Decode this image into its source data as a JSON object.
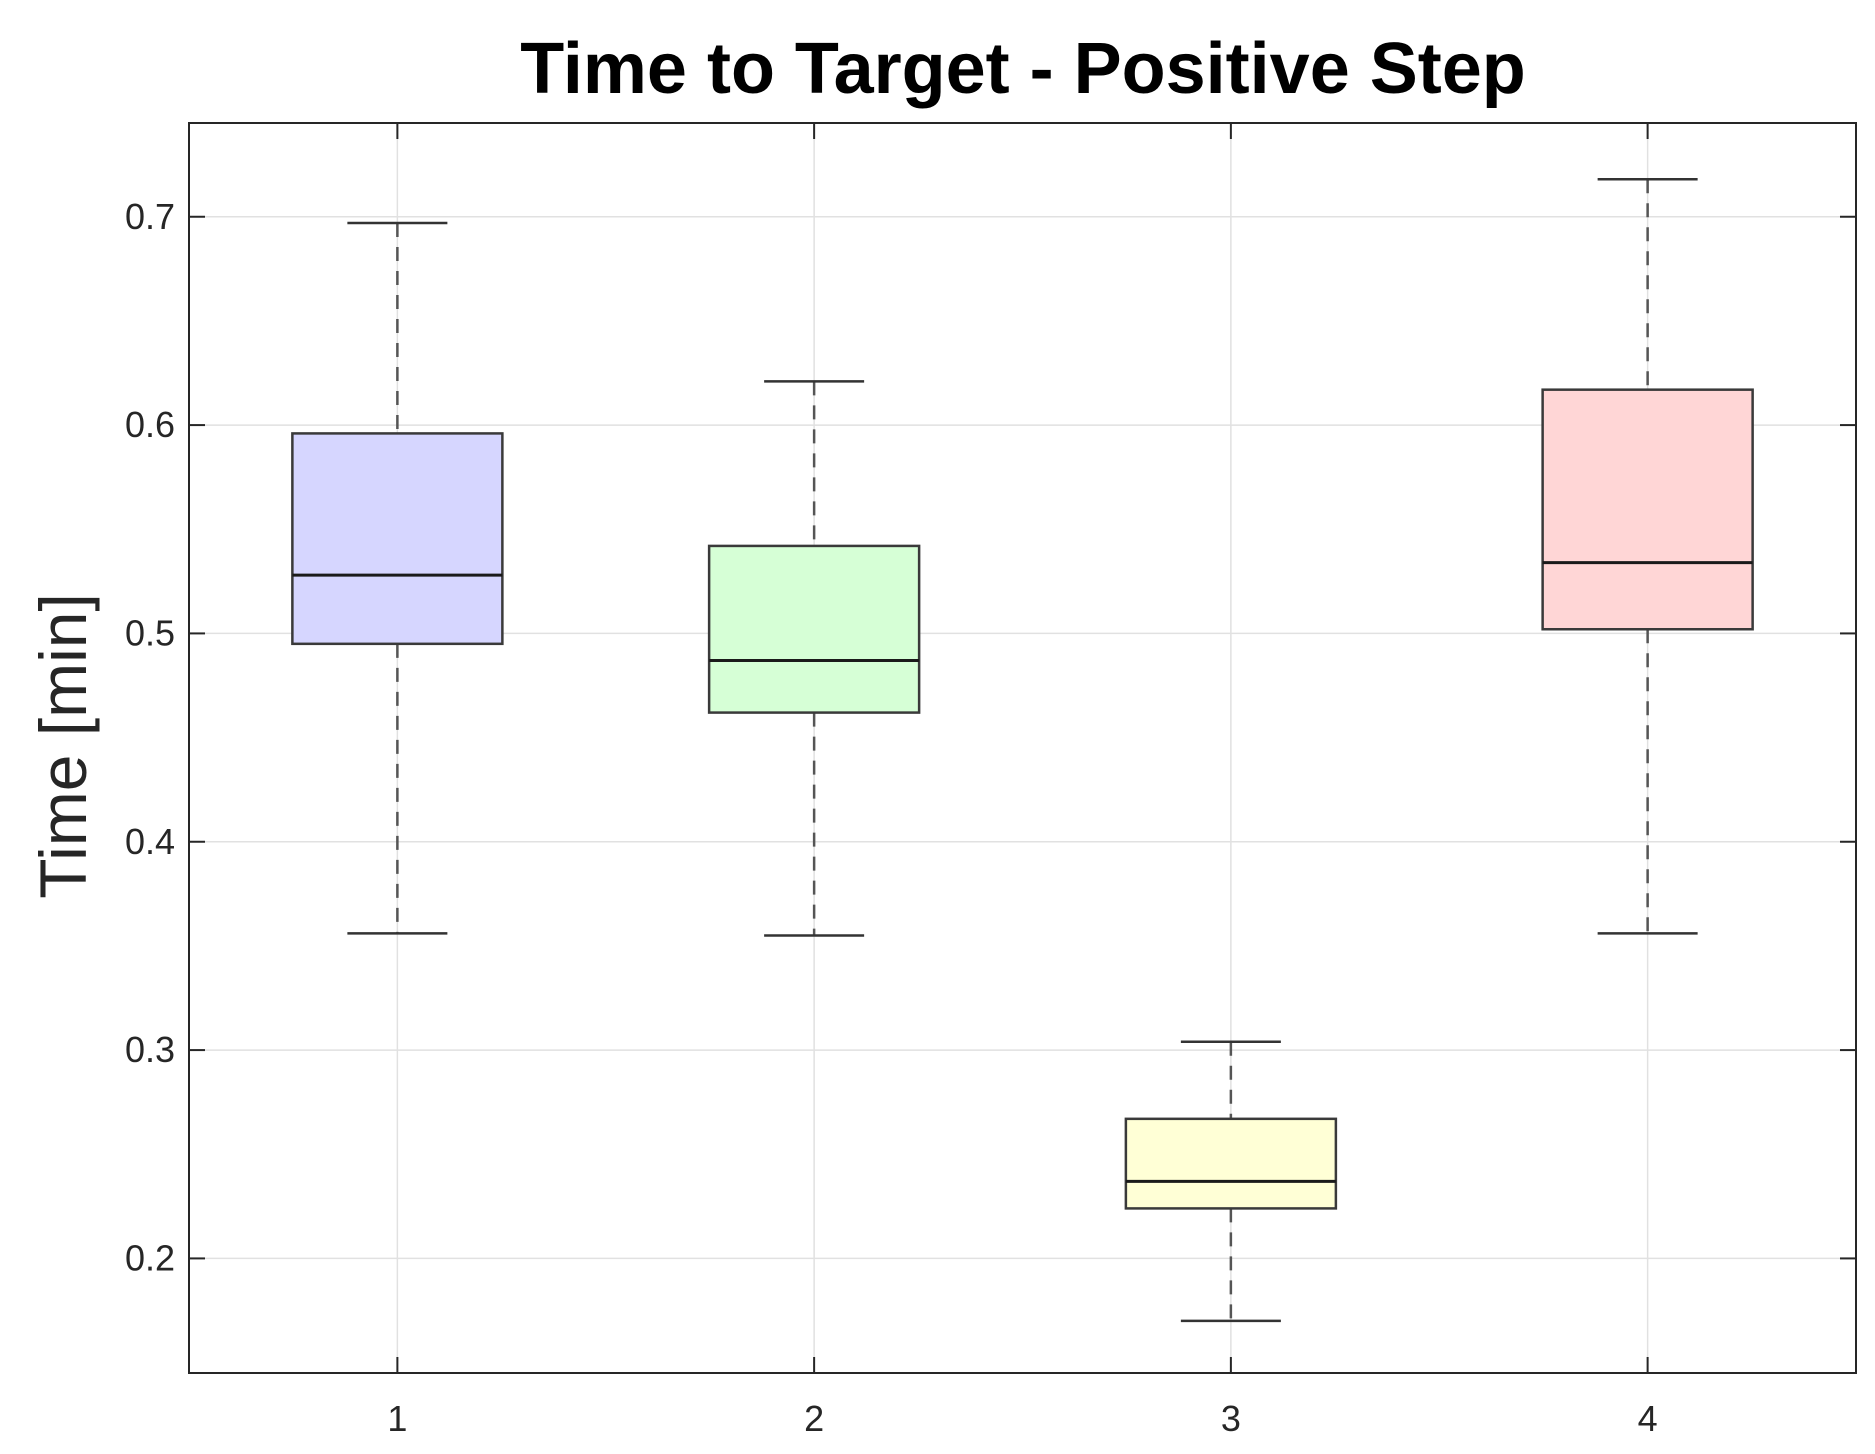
{
  "chart_data": {
    "type": "box",
    "title": "Time to Target - Positive Step",
    "xlabel": "",
    "ylabel": "Time [min]",
    "ylim": [
      0.145,
      0.745
    ],
    "yticks": [
      "0.2",
      "0.3",
      "0.4",
      "0.5",
      "0.6",
      "0.7"
    ],
    "categories": [
      "1",
      "2",
      "3",
      "4"
    ],
    "grid": true,
    "boxes": [
      {
        "category": "1",
        "whisker_low": 0.356,
        "q1": 0.495,
        "median": 0.528,
        "q3": 0.596,
        "whisker_high": 0.697,
        "color": "#d6d6ff"
      },
      {
        "category": "2",
        "whisker_low": 0.355,
        "q1": 0.462,
        "median": 0.487,
        "q3": 0.542,
        "whisker_high": 0.621,
        "color": "#d6ffd6"
      },
      {
        "category": "3",
        "whisker_low": 0.17,
        "q1": 0.224,
        "median": 0.237,
        "q3": 0.267,
        "whisker_high": 0.304,
        "color": "#ffffd6"
      },
      {
        "category": "4",
        "whisker_low": 0.356,
        "q1": 0.502,
        "median": 0.534,
        "q3": 0.617,
        "whisker_high": 0.718,
        "color": "#ffd6d6"
      }
    ]
  }
}
